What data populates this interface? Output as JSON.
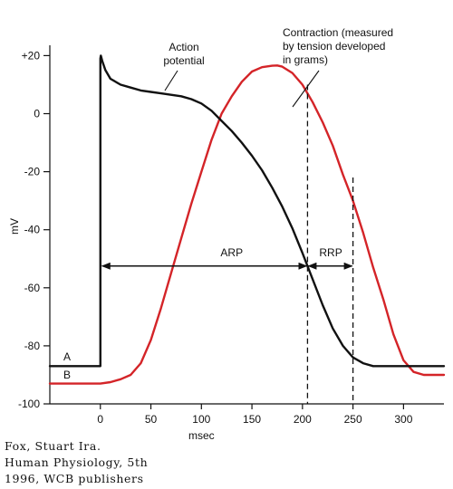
{
  "chart_data": {
    "type": "line",
    "xlabel": "msec",
    "ylabel": "mV",
    "xlim": [
      -50,
      340
    ],
    "ylim": [
      -100,
      22
    ],
    "x_ticks": [
      "0",
      "50",
      "100",
      "150",
      "200",
      "250",
      "300"
    ],
    "y_ticks": [
      "+20",
      "0",
      "-20",
      "-40",
      "-60",
      "-80",
      "-100"
    ],
    "grid": false,
    "series": [
      {
        "name": "Action potential",
        "color": "#111111",
        "x": [
          -50,
          0,
          0,
          0.5,
          2,
          5,
          10,
          20,
          30,
          40,
          50,
          60,
          70,
          80,
          90,
          100,
          110,
          120,
          130,
          140,
          150,
          160,
          170,
          180,
          190,
          200,
          210,
          220,
          230,
          240,
          250,
          260,
          270,
          280,
          300,
          340
        ],
        "y": [
          -87,
          -87,
          19,
          20,
          18,
          15,
          12,
          10,
          9,
          8,
          7.5,
          7,
          6.5,
          6,
          5,
          3.5,
          1,
          -2.5,
          -6,
          -10,
          -14.5,
          -19.5,
          -25.5,
          -32,
          -39.5,
          -48,
          -57,
          -66,
          -74,
          -80,
          -84,
          -86,
          -87,
          -87,
          -87,
          -87
        ]
      },
      {
        "name": "Contraction (measured by tension developed in grams)",
        "color": "#d42428",
        "x": [
          -50,
          0,
          10,
          20,
          30,
          40,
          50,
          60,
          70,
          80,
          90,
          100,
          110,
          120,
          130,
          140,
          150,
          160,
          170,
          175,
          180,
          190,
          200,
          210,
          220,
          230,
          240,
          250,
          260,
          270,
          280,
          290,
          300,
          310,
          320,
          340
        ],
        "y": [
          -93,
          -93,
          -92.5,
          -91.5,
          -90,
          -86,
          -78,
          -67,
          -55,
          -43,
          -31,
          -20,
          -9,
          0,
          6,
          11,
          14.5,
          16,
          16.5,
          16.6,
          16.2,
          14,
          10,
          4,
          -3,
          -11,
          -21,
          -30,
          -41,
          -53,
          -64,
          -76,
          -85,
          -89,
          -90,
          -90
        ]
      }
    ],
    "annotations": {
      "action_potential_label": [
        "Action",
        "potential"
      ],
      "contraction_label": [
        "Contraction (measured",
        "by tension developed",
        "in grams)"
      ],
      "arp_label": "ARP",
      "rrp_label": "RRP",
      "a_label": "A",
      "b_label": "B",
      "arp_range": [
        0,
        205
      ],
      "rrp_range": [
        205,
        250
      ]
    }
  },
  "credit": {
    "line1": "Fox, Stuart Ira.",
    "line2": "Human Physiology, 5th",
    "line3": "1996, WCB publishers"
  }
}
